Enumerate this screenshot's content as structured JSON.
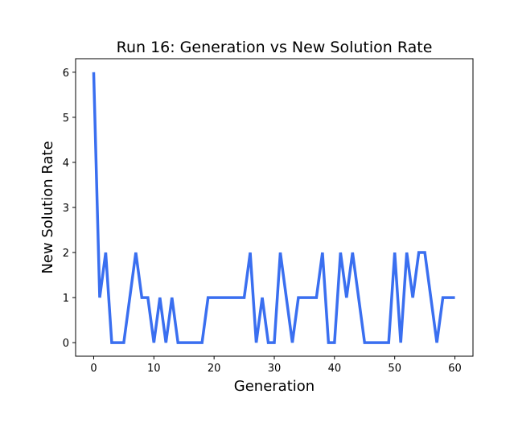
{
  "chart_data": {
    "type": "line",
    "title": "Run 16: Generation vs New Solution Rate",
    "xlabel": "Generation",
    "ylabel": "New Solution Rate",
    "xlim": [
      -3,
      63
    ],
    "ylim": [
      -0.3,
      6.3
    ],
    "xticks": [
      0,
      10,
      20,
      30,
      40,
      50,
      60
    ],
    "yticks": [
      0,
      1,
      2,
      3,
      4,
      5,
      6
    ],
    "grid": false,
    "series": [
      {
        "color": "#3a6ff0",
        "x": [
          0,
          1,
          2,
          3,
          4,
          5,
          6,
          7,
          8,
          9,
          10,
          11,
          12,
          13,
          14,
          15,
          16,
          17,
          18,
          19,
          20,
          21,
          22,
          23,
          24,
          25,
          26,
          27,
          28,
          29,
          30,
          31,
          32,
          33,
          34,
          35,
          36,
          37,
          38,
          39,
          40,
          41,
          42,
          43,
          44,
          45,
          46,
          47,
          48,
          49,
          50,
          51,
          52,
          53,
          54,
          55,
          56,
          57,
          58,
          59,
          60
        ],
        "values": [
          6,
          1,
          2,
          0,
          0,
          0,
          1,
          2,
          1,
          1,
          0,
          1,
          0,
          1,
          0,
          0,
          0,
          0,
          0,
          1,
          1,
          1,
          1,
          1,
          1,
          1,
          2,
          0,
          1,
          0,
          0,
          2,
          1,
          0,
          1,
          1,
          1,
          1,
          2,
          0,
          0,
          2,
          1,
          2,
          1,
          0,
          0,
          0,
          0,
          0,
          2,
          0,
          2,
          1,
          2,
          2,
          1,
          0,
          1,
          1,
          1
        ]
      }
    ]
  }
}
